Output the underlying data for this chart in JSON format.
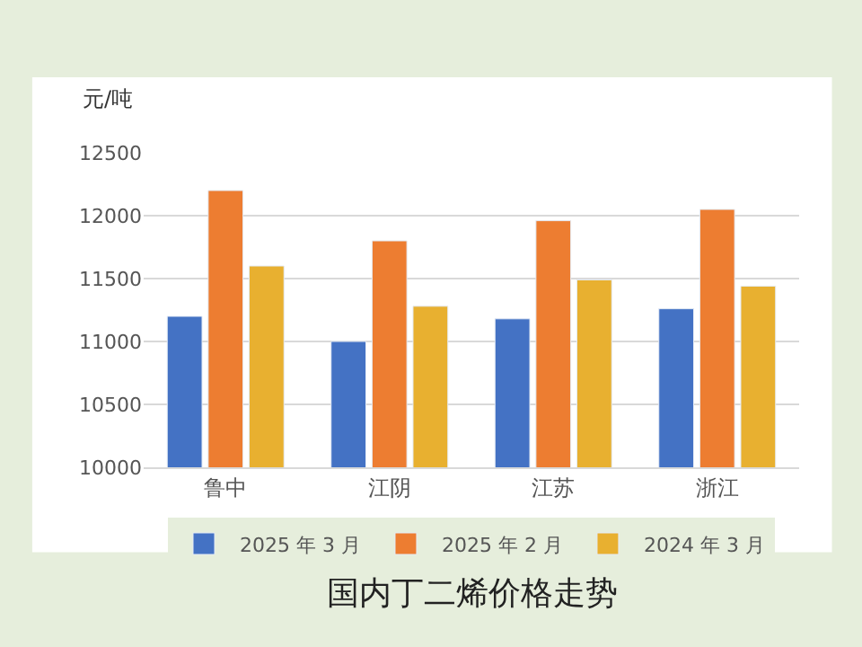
{
  "chart_data": {
    "type": "bar",
    "title": "国内丁二烯价格走势",
    "ylabel": "元/吨",
    "categories": [
      "鲁中",
      "江阴",
      "江苏",
      "浙江"
    ],
    "series": [
      {
        "name": "2025 年 3 月",
        "color": "#4472c4",
        "values": [
          11200,
          11000,
          11180,
          11260
        ]
      },
      {
        "name": "2025 年 2 月",
        "color": "#ed7d31",
        "values": [
          12200,
          11800,
          11960,
          12050
        ]
      },
      {
        "name": "2024 年 3 月",
        "color": "#e8b030",
        "values": [
          11600,
          11280,
          11490,
          11440
        ]
      }
    ],
    "ylim": [
      10000,
      12500
    ],
    "yticks": [
      10000,
      10500,
      11000,
      11500,
      12000,
      12500
    ],
    "grid": "y",
    "legend": "bottom"
  }
}
